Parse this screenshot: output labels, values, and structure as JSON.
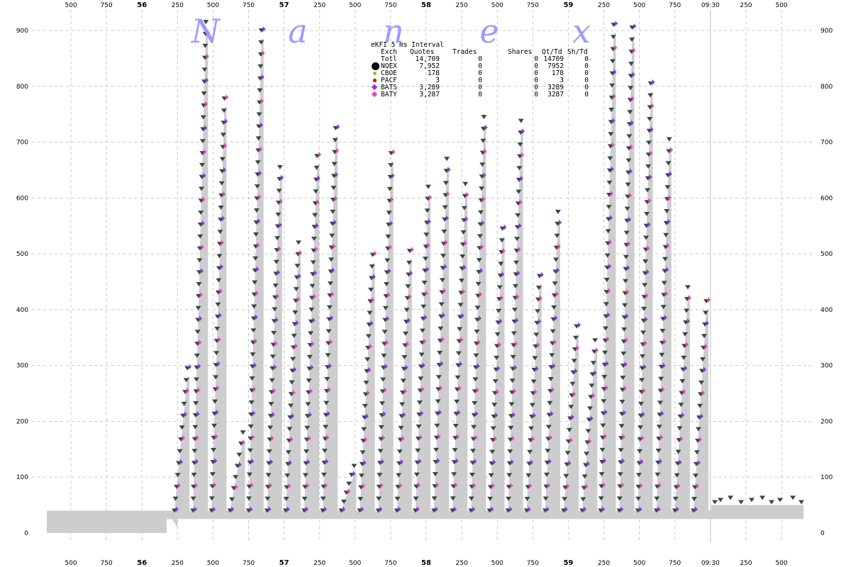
{
  "chart_data": {
    "type": "scatter",
    "title": "eKFI 5 ms Interval",
    "watermark": [
      "N",
      "a",
      "n",
      "e",
      "x"
    ],
    "ylim": [
      0,
      900
    ],
    "y_ticks": [
      0,
      100,
      200,
      300,
      400,
      500,
      600,
      700,
      800,
      900
    ],
    "x_ticks": [
      "500",
      "750",
      "56",
      "250",
      "500",
      "750",
      "57",
      "250",
      "500",
      "750",
      "58",
      "250",
      "500",
      "750",
      "59",
      "250",
      "500",
      "750",
      "09:30",
      "250",
      "500"
    ],
    "x_major_ticks": [
      "56",
      "57",
      "58",
      "59"
    ],
    "grid": true,
    "legend": {
      "placement": "top-center",
      "columns": [
        "Exch",
        "Quotes",
        "Trades",
        "Shares",
        "Qt/Td",
        "Sh/Td"
      ],
      "rows": [
        {
          "exch": "Totl",
          "quotes": "14,709",
          "trades": "0",
          "shares": "0",
          "qt_td": "14709",
          "sh_td": "0",
          "marker": "none",
          "color": ""
        },
        {
          "exch": "NQEX",
          "quotes": "7,952",
          "trades": "0",
          "shares": "0",
          "qt_td": "7952",
          "sh_td": "0",
          "marker": "circle-large",
          "color": "#000000"
        },
        {
          "exch": "CBOE",
          "quotes": "178",
          "trades": "0",
          "shares": "0",
          "qt_td": "178",
          "sh_td": "0",
          "marker": "circle-small",
          "color": "#8cc800"
        },
        {
          "exch": "PACF",
          "quotes": "3",
          "trades": "0",
          "shares": "0",
          "qt_td": "3",
          "sh_td": "0",
          "marker": "circle-small",
          "color": "#d20000"
        },
        {
          "exch": "BATS",
          "quotes": "3,289",
          "trades": "0",
          "shares": "0",
          "qt_td": "3289",
          "sh_td": "0",
          "marker": "diamond",
          "color": "#9632e6"
        },
        {
          "exch": "BATY",
          "quotes": "3,287",
          "trades": "0",
          "shares": "0",
          "qt_td": "3287",
          "sh_td": "0",
          "marker": "diamond",
          "color": "#e646c8"
        }
      ]
    },
    "colors": {
      "volume_fill": "#cdcdcd",
      "nqex_marker": "#3c4646",
      "bats_marker": "#9632e6",
      "baty_marker": "#e646c8",
      "grid": "#c8c8c8"
    },
    "bursts": [
      {
        "peak": 295
      },
      {
        "peak": 915
      },
      {
        "peak": 778
      },
      {
        "peak": 180
      },
      {
        "peak": 900
      },
      {
        "peak": 655
      },
      {
        "peak": 520
      },
      {
        "peak": 675
      },
      {
        "peak": 725
      },
      {
        "peak": 120
      },
      {
        "peak": 498
      },
      {
        "peak": 680
      },
      {
        "peak": 505
      },
      {
        "peak": 620
      },
      {
        "peak": 670
      },
      {
        "peak": 625
      },
      {
        "peak": 745
      },
      {
        "peak": 545
      },
      {
        "peak": 738
      },
      {
        "peak": 460
      },
      {
        "peak": 575
      },
      {
        "peak": 370
      },
      {
        "peak": 345
      },
      {
        "peak": 910
      },
      {
        "peak": 905
      },
      {
        "peak": 805
      },
      {
        "peak": 705
      },
      {
        "peak": 440
      },
      {
        "peak": 415
      }
    ],
    "baseline_volume": 40,
    "late_volume": 50
  }
}
